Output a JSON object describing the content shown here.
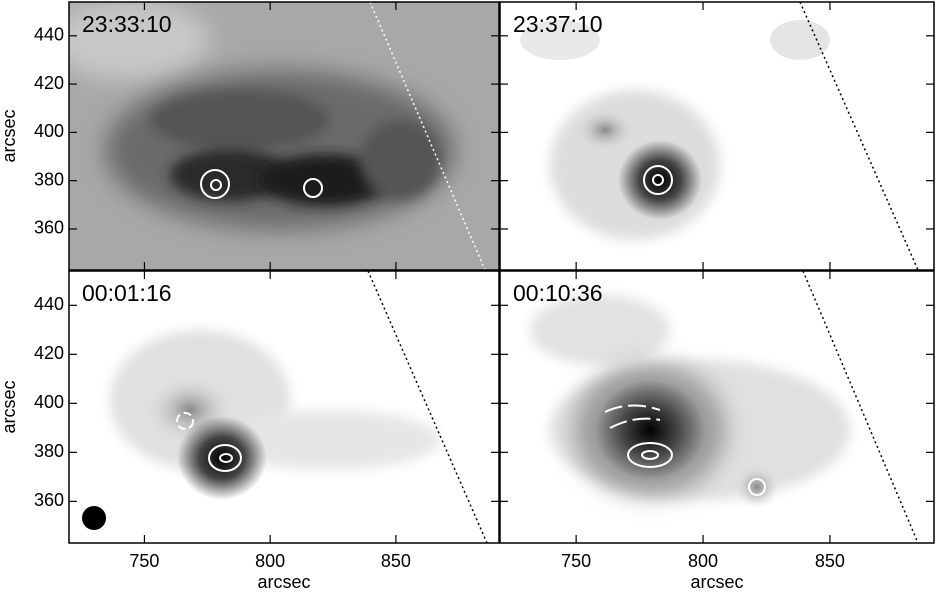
{
  "chart_data": [
    {
      "type": "image",
      "title": "23:33:10",
      "ylabel": "arcsec",
      "xlim": [
        720,
        891
      ],
      "ylim": [
        343,
        454
      ],
      "xticks": [
        750,
        800,
        850
      ],
      "yticks": [
        360,
        380,
        400,
        420,
        440
      ]
    },
    {
      "type": "image",
      "title": "23:37:10",
      "xlim": [
        720,
        891
      ],
      "ylim": [
        343,
        454
      ],
      "xticks": [
        750,
        800,
        850
      ],
      "yticks": [
        360,
        380,
        400,
        420,
        440
      ]
    },
    {
      "type": "image",
      "title": "00:01:16",
      "xlabel": "arcsec",
      "ylabel": "arcsec",
      "xlim": [
        720,
        891
      ],
      "ylim": [
        343,
        454
      ],
      "xticks": [
        750,
        800,
        850
      ],
      "yticks": [
        360,
        380,
        400,
        420,
        440
      ]
    },
    {
      "type": "image",
      "title": "00:10:36",
      "xlabel": "arcsec",
      "xlim": [
        720,
        891
      ],
      "ylim": [
        343,
        454
      ],
      "xticks": [
        750,
        800,
        850
      ],
      "yticks": [
        360,
        380,
        400,
        420,
        440
      ]
    }
  ]
}
